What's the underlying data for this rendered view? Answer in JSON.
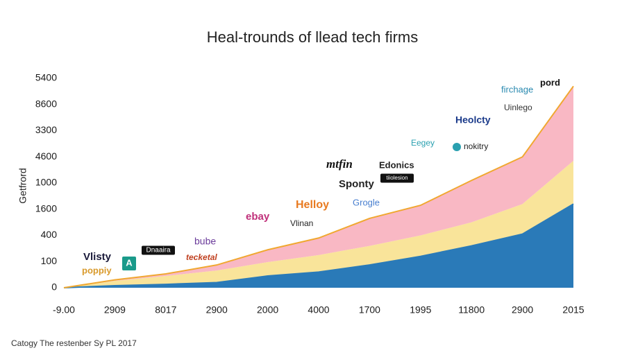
{
  "chart_data": {
    "type": "stacked-area",
    "title": "Heal-trounds of llead tech firms",
    "y_label": "Getfrord",
    "footer": "Catogy The restenber Sy PL 2017",
    "categories": [
      "-9.00",
      "2909",
      "8017",
      "2900",
      "2000",
      "4000",
      "1700",
      "1995",
      "11800",
      "2900",
      "2015"
    ],
    "ylim": [
      0,
      8
    ],
    "yticks": [
      {
        "value": 0,
        "label": "0"
      },
      {
        "value": 1,
        "label": "100"
      },
      {
        "value": 2,
        "label": "400"
      },
      {
        "value": 3,
        "label": "1600"
      },
      {
        "value": 4,
        "label": "1000"
      },
      {
        "value": 5,
        "label": "4600"
      },
      {
        "value": 6,
        "label": "3300"
      },
      {
        "value": 7,
        "label": "8600"
      },
      {
        "value": 8,
        "label": "5400"
      }
    ],
    "grid": false,
    "series": [
      {
        "color": "#2a7ab8",
        "values": [
          0,
          0.08,
          0.13,
          0.2,
          0.45,
          0.6,
          0.87,
          1.2,
          1.6,
          2.05,
          3.2
        ]
      },
      {
        "color": "#f9e49a",
        "values": [
          0,
          0.18,
          0.32,
          0.46,
          0.53,
          0.65,
          0.73,
          0.8,
          0.9,
          1.15,
          1.65
        ]
      },
      {
        "color": "#f9b8c4",
        "values": [
          0,
          0.04,
          0.08,
          0.21,
          0.47,
          0.65,
          1.05,
          1.15,
          1.6,
          1.8,
          2.85
        ]
      }
    ],
    "top_line_color": "#f0a830",
    "annotations": [
      "Vlisty",
      "poppiy",
      "A",
      "Dnaaira",
      "bube",
      "tecketal",
      "ebay",
      "Vlinan",
      "Helloy",
      "mtfin",
      "Sponty",
      "Edonics",
      "tiiolesion",
      "Grogle",
      "Eegey",
      "nokitry",
      "Heolcty",
      "Uinlego",
      "firchage",
      "pord"
    ]
  }
}
